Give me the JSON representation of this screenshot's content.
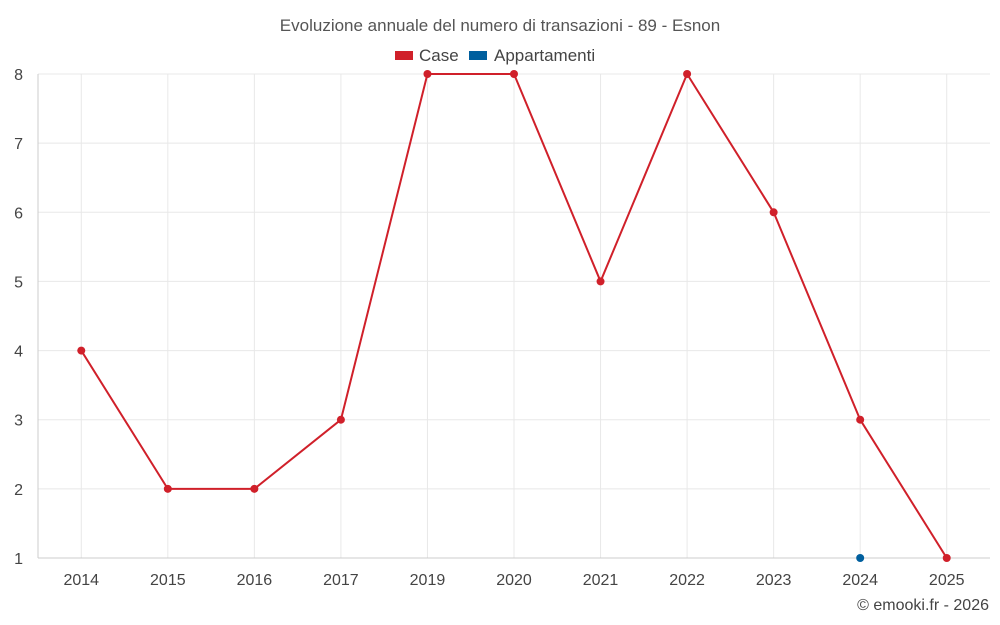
{
  "chart_data": {
    "type": "line",
    "title": "Evoluzione annuale del numero di transazioni - 89 - Esnon",
    "categories": [
      "2014",
      "2015",
      "2016",
      "2017",
      "2019",
      "2020",
      "2021",
      "2022",
      "2023",
      "2024",
      "2025"
    ],
    "series": [
      {
        "name": "Case",
        "color": "#d0202a",
        "values": [
          4,
          2,
          2,
          3,
          8,
          8,
          5,
          8,
          6,
          3,
          1
        ]
      },
      {
        "name": "Appartamenti",
        "color": "#005f9e",
        "values": [
          null,
          null,
          null,
          null,
          null,
          null,
          null,
          null,
          null,
          1,
          null
        ]
      }
    ],
    "ylim": [
      1,
      8
    ],
    "yticks": [
      "1",
      "2",
      "3",
      "4",
      "5",
      "6",
      "7",
      "8"
    ],
    "xlabel": "",
    "ylabel": "",
    "grid": true,
    "legend": "top-center"
  },
  "credit": "© emooki.fr - 2026"
}
